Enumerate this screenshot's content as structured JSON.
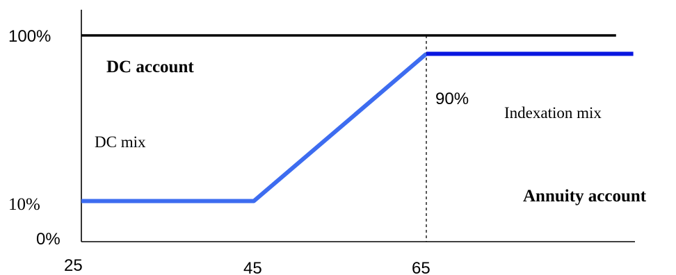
{
  "chart_data": {
    "type": "line",
    "title": "",
    "xlabel": "",
    "ylabel": "",
    "xlim": [
      25,
      89
    ],
    "ylim": [
      0,
      100
    ],
    "x_ticks": [
      "25",
      "45",
      "65"
    ],
    "y_ticks": [
      "100%",
      "10%",
      "0%"
    ],
    "series": [
      {
        "x": [
          25,
          45,
          65,
          89
        ],
        "y": [
          10,
          10,
          90,
          90
        ],
        "color": "#3d6cf0",
        "color_after_65": "#0a17e0"
      },
      {
        "x": [
          25,
          87
        ],
        "y": [
          100,
          100
        ],
        "color": "#000000"
      }
    ],
    "reference_line": {
      "x": 65,
      "style": "dashed",
      "color": "#000000"
    },
    "annotations": {
      "dc_account": "DC account",
      "dc_mix": "DC mix",
      "pct_90": "90%",
      "indexation_mix": "Indexation mix",
      "annuity_account": "Annuity account"
    },
    "grid": false,
    "legend": "none"
  }
}
